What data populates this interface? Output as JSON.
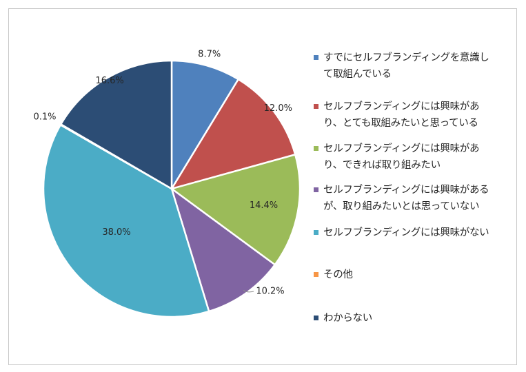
{
  "chart_data": {
    "type": "pie",
    "title": "",
    "start_angle_deg": 0,
    "direction": "clockwise",
    "legend_position": "right",
    "slices": [
      {
        "label": "すでにセルフブランディングを意識して取組んでいる",
        "value": 8.7,
        "value_label": "8.7%",
        "color": "#4f81bd"
      },
      {
        "label": "セルフブランディングには興味があり、とても取組みたいと思っている",
        "value": 12.0,
        "value_label": "12.0%",
        "color": "#c0504d"
      },
      {
        "label": "セルフブランディングには興味があり、できれば取り組みたい",
        "value": 14.4,
        "value_label": "14.4%",
        "color": "#9bbb59"
      },
      {
        "label": "セルフブランディングには興味があるが、取り組みたいとは思っていない",
        "value": 10.2,
        "value_label": "10.2%",
        "color": "#8064a2"
      },
      {
        "label": "セルフブランディングには興味がない",
        "value": 38.0,
        "value_label": "38.0%",
        "color": "#4bacc6"
      },
      {
        "label": "その他",
        "value": 0.1,
        "value_label": "0.1%",
        "color": "#f79646"
      },
      {
        "label": "わからない",
        "value": 16.6,
        "value_label": "16.6%",
        "color": "#2c4d75"
      }
    ]
  },
  "legend": {
    "items": [
      "すでにセルフブランディングを意識し\nて取組んでいる",
      "セルフブランディングには興味があ\nり、とても取組みたいと思っている",
      "セルフブランディングには興味があ\nり、できれば取り組みたい",
      "セルフブランディングには興味がある\nが、取り組みたいとは思っていない",
      "セルフブランディングには興味がない",
      "その他",
      "わからない"
    ]
  }
}
